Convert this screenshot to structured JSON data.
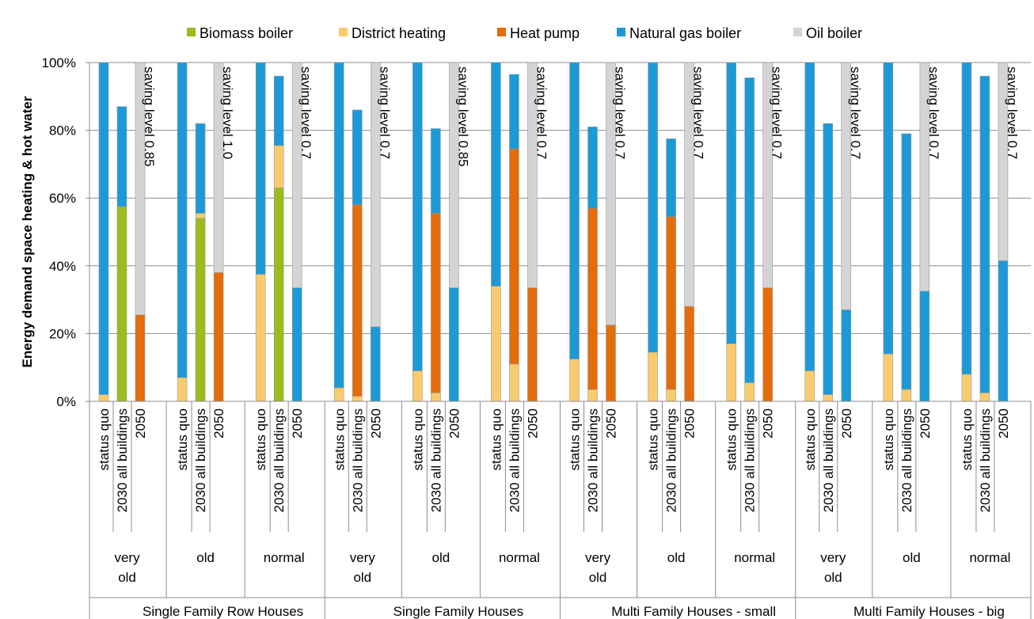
{
  "chart_data": {
    "type": "bar",
    "stacked": true,
    "ylabel": "Energy demand space heating & hot water",
    "ylim": [
      0,
      100
    ],
    "yticks": [
      "0%",
      "20%",
      "40%",
      "60%",
      "80%",
      "100%"
    ],
    "grid": true,
    "legend_position": "top",
    "series": [
      {
        "name": "Biomass boiler",
        "color": "#9BBB1E"
      },
      {
        "name": "District heating",
        "color": "#F8CC6E"
      },
      {
        "name": "Heat pump",
        "color": "#E46C0A"
      },
      {
        "name": "Natural gas boiler",
        "color": "#1C9AD6"
      },
      {
        "name": "Oil boiler",
        "color": "#D4D4D4"
      }
    ],
    "scenarios": [
      "status quo",
      "2030 all buildings",
      "2050"
    ],
    "building_types": [
      {
        "name": "Single Family Row Houses",
        "ages": [
          {
            "label": "very\nold",
            "saving_label": "saving level 0.85",
            "bars": [
              {
                "Biomass boiler": 0,
                "District heating": 2,
                "Heat pump": 0,
                "Natural gas boiler": 98,
                "Oil boiler": 0
              },
              {
                "Biomass boiler": 57.5,
                "District heating": 0,
                "Heat pump": 0,
                "Natural gas boiler": 29.5,
                "Oil boiler": 0
              },
              {
                "Biomass boiler": 0,
                "District heating": 0,
                "Heat pump": 25.5,
                "Natural gas boiler": 0,
                "Oil boiler": 74.5
              }
            ]
          },
          {
            "label": "old",
            "saving_label": "saving level 1.0",
            "bars": [
              {
                "Biomass boiler": 0,
                "District heating": 7,
                "Heat pump": 0,
                "Natural gas boiler": 93,
                "Oil boiler": 0
              },
              {
                "Biomass boiler": 54,
                "District heating": 1.5,
                "Heat pump": 0,
                "Natural gas boiler": 26.5,
                "Oil boiler": 0
              },
              {
                "Biomass boiler": 0,
                "District heating": 0,
                "Heat pump": 38,
                "Natural gas boiler": 0,
                "Oil boiler": 62
              }
            ]
          },
          {
            "label": "normal",
            "saving_label": "saving level 0.7",
            "bars": [
              {
                "Biomass boiler": 0,
                "District heating": 37.5,
                "Heat pump": 0,
                "Natural gas boiler": 62.5,
                "Oil boiler": 0
              },
              {
                "Biomass boiler": 63,
                "District heating": 12.5,
                "Heat pump": 0,
                "Natural gas boiler": 20.5,
                "Oil boiler": 0
              },
              {
                "Biomass boiler": 0,
                "District heating": 0,
                "Heat pump": 0,
                "Natural gas boiler": 33.5,
                "Oil boiler": 66.5
              }
            ]
          }
        ]
      },
      {
        "name": "Single Family Houses",
        "ages": [
          {
            "label": "very\nold",
            "saving_label": "saving level 0.7",
            "bars": [
              {
                "Biomass boiler": 0,
                "District heating": 4,
                "Heat pump": 0,
                "Natural gas boiler": 96,
                "Oil boiler": 0
              },
              {
                "Biomass boiler": 0,
                "District heating": 1.5,
                "Heat pump": 56.5,
                "Natural gas boiler": 28,
                "Oil boiler": 0
              },
              {
                "Biomass boiler": 0,
                "District heating": 0,
                "Heat pump": 0,
                "Natural gas boiler": 22,
                "Oil boiler": 78
              }
            ]
          },
          {
            "label": "old",
            "saving_label": "saving level 0.85",
            "bars": [
              {
                "Biomass boiler": 0,
                "District heating": 9,
                "Heat pump": 0,
                "Natural gas boiler": 91,
                "Oil boiler": 0
              },
              {
                "Biomass boiler": 0,
                "District heating": 2.5,
                "Heat pump": 53,
                "Natural gas boiler": 25,
                "Oil boiler": 0
              },
              {
                "Biomass boiler": 0,
                "District heating": 0,
                "Heat pump": 0,
                "Natural gas boiler": 33.5,
                "Oil boiler": 66.5
              }
            ]
          },
          {
            "label": "normal",
            "saving_label": "saving level 0.7",
            "bars": [
              {
                "Biomass boiler": 0,
                "District heating": 34,
                "Heat pump": 0,
                "Natural gas boiler": 66,
                "Oil boiler": 0
              },
              {
                "Biomass boiler": 0,
                "District heating": 11,
                "Heat pump": 63.5,
                "Natural gas boiler": 22,
                "Oil boiler": 0
              },
              {
                "Biomass boiler": 0,
                "District heating": 0,
                "Heat pump": 33.5,
                "Natural gas boiler": 0,
                "Oil boiler": 66.5
              }
            ]
          }
        ]
      },
      {
        "name": "Multi Family Houses - small",
        "ages": [
          {
            "label": "very\nold",
            "saving_label": "saving level 0.7",
            "bars": [
              {
                "Biomass boiler": 0,
                "District heating": 12.5,
                "Heat pump": 0,
                "Natural gas boiler": 87.5,
                "Oil boiler": 0
              },
              {
                "Biomass boiler": 0,
                "District heating": 3.5,
                "Heat pump": 53.5,
                "Natural gas boiler": 24,
                "Oil boiler": 0
              },
              {
                "Biomass boiler": 0,
                "District heating": 0,
                "Heat pump": 22.5,
                "Natural gas boiler": 0,
                "Oil boiler": 77.5
              }
            ]
          },
          {
            "label": "old",
            "saving_label": "saving level 0.7",
            "bars": [
              {
                "Biomass boiler": 0,
                "District heating": 14.5,
                "Heat pump": 0,
                "Natural gas boiler": 85.5,
                "Oil boiler": 0
              },
              {
                "Biomass boiler": 0,
                "District heating": 3.5,
                "Heat pump": 51,
                "Natural gas boiler": 23,
                "Oil boiler": 0
              },
              {
                "Biomass boiler": 0,
                "District heating": 0,
                "Heat pump": 28,
                "Natural gas boiler": 0,
                "Oil boiler": 72
              }
            ]
          },
          {
            "label": "normal",
            "saving_label": "saving level 0.7",
            "bars": [
              {
                "Biomass boiler": 0,
                "District heating": 17,
                "Heat pump": 0,
                "Natural gas boiler": 83,
                "Oil boiler": 0
              },
              {
                "Biomass boiler": 0,
                "District heating": 5.5,
                "Heat pump": 0,
                "Natural gas boiler": 90,
                "Oil boiler": 0
              },
              {
                "Biomass boiler": 0,
                "District heating": 0,
                "Heat pump": 33.5,
                "Natural gas boiler": 0,
                "Oil boiler": 66.5
              }
            ]
          }
        ]
      },
      {
        "name": "Multi Family Houses - big",
        "ages": [
          {
            "label": "very\nold",
            "saving_label": "saving level 0.7",
            "bars": [
              {
                "Biomass boiler": 0,
                "District heating": 9,
                "Heat pump": 0,
                "Natural gas boiler": 91,
                "Oil boiler": 0
              },
              {
                "Biomass boiler": 0,
                "District heating": 2,
                "Heat pump": 0,
                "Natural gas boiler": 80,
                "Oil boiler": 0
              },
              {
                "Biomass boiler": 0,
                "District heating": 0,
                "Heat pump": 0,
                "Natural gas boiler": 27,
                "Oil boiler": 73
              }
            ]
          },
          {
            "label": "old",
            "saving_label": "saving level 0.7",
            "bars": [
              {
                "Biomass boiler": 0,
                "District heating": 14,
                "Heat pump": 0,
                "Natural gas boiler": 86,
                "Oil boiler": 0
              },
              {
                "Biomass boiler": 0,
                "District heating": 3.5,
                "Heat pump": 0,
                "Natural gas boiler": 75.5,
                "Oil boiler": 0
              },
              {
                "Biomass boiler": 0,
                "District heating": 0,
                "Heat pump": 0,
                "Natural gas boiler": 32.5,
                "Oil boiler": 67.5
              }
            ]
          },
          {
            "label": "normal",
            "saving_label": "saving level 0.7",
            "bars": [
              {
                "Biomass boiler": 0,
                "District heating": 8,
                "Heat pump": 0,
                "Natural gas boiler": 92,
                "Oil boiler": 0
              },
              {
                "Biomass boiler": 0,
                "District heating": 2.5,
                "Heat pump": 0,
                "Natural gas boiler": 93.5,
                "Oil boiler": 0
              },
              {
                "Biomass boiler": 0,
                "District heating": 0,
                "Heat pump": 0,
                "Natural gas boiler": 41.5,
                "Oil boiler": 58.5
              }
            ]
          }
        ]
      }
    ]
  }
}
